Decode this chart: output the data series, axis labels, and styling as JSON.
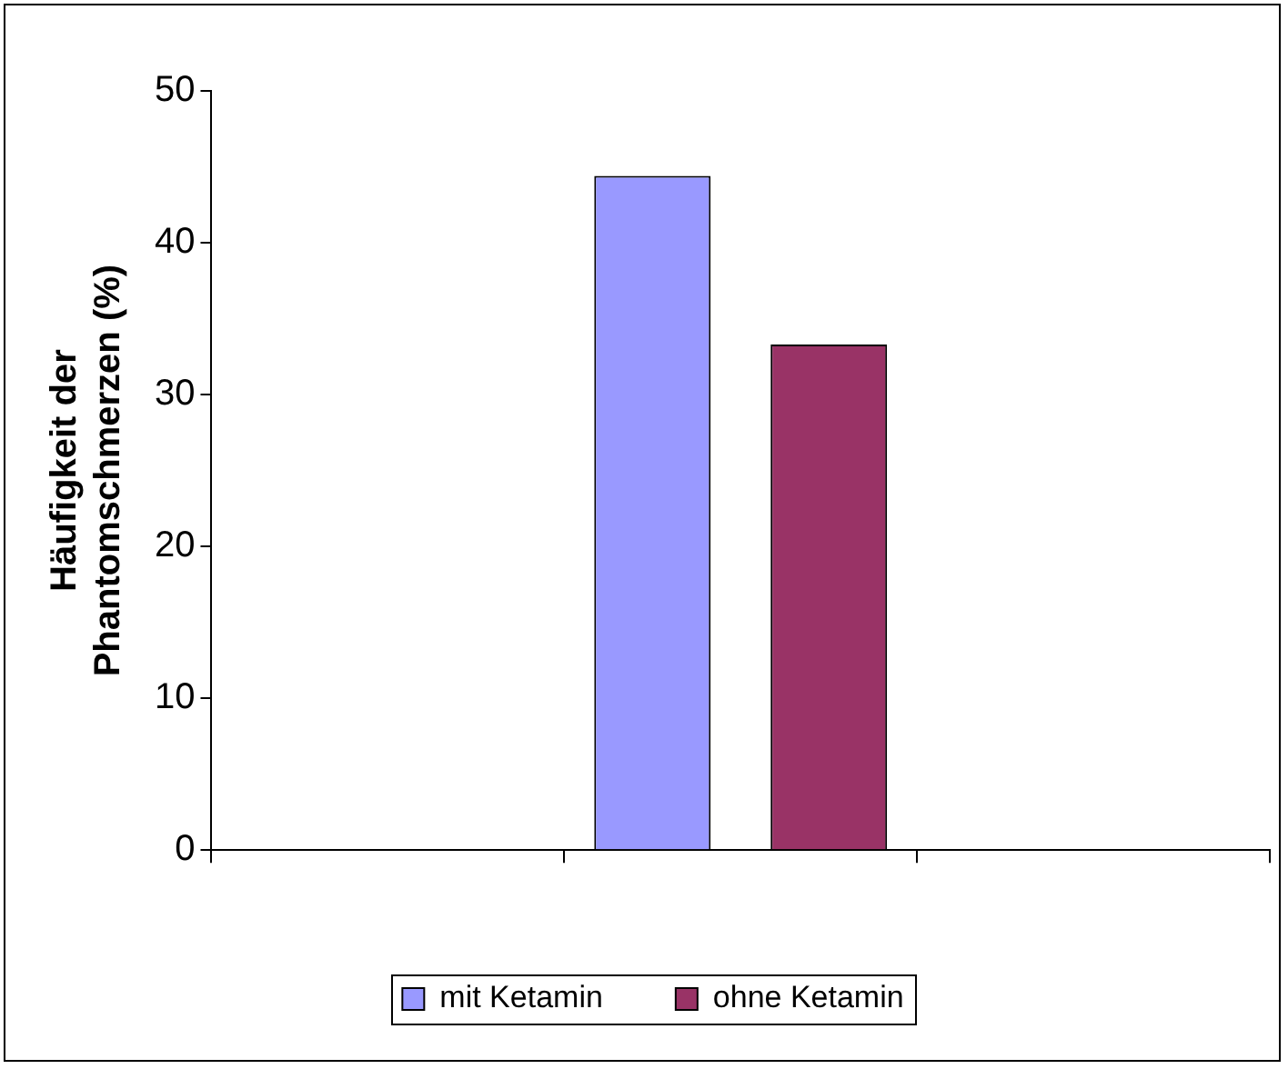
{
  "chart_data": {
    "type": "bar",
    "ylabel": "Häufigkeit der\nPhantomschmerzen (%)",
    "categories": [
      null,
      null,
      null
    ],
    "series": [
      {
        "name": "mit Ketamin",
        "color": "#9999ff",
        "values": [
          null,
          44.4,
          null
        ]
      },
      {
        "name": "ohne Ketamin",
        "color": "#993366",
        "values": [
          null,
          33.3,
          null
        ]
      }
    ],
    "ylim": [
      0,
      50
    ],
    "yticks": [
      0,
      10,
      20,
      30,
      40,
      50
    ],
    "grid": false,
    "legend": "bottom"
  }
}
